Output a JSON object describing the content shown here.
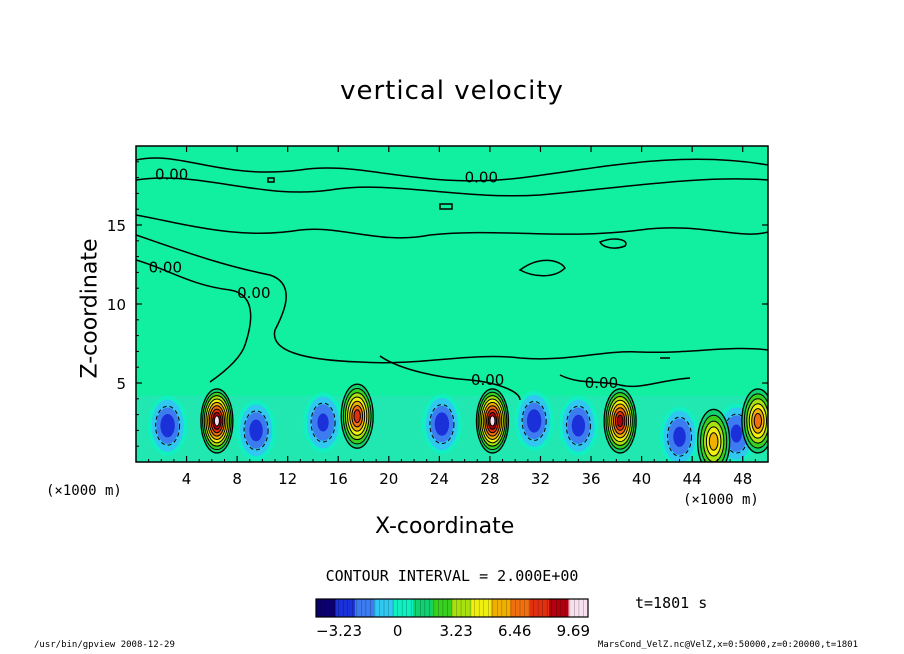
{
  "chart_data": {
    "type": "heatmap",
    "title": "vertical velocity",
    "xlabel": "X-coordinate",
    "ylabel": "Z-coordinate",
    "x_unit": "(×1000 m)",
    "xlim": [
      0,
      50
    ],
    "ylim": [
      0,
      20
    ],
    "x_ticks": [
      "4",
      "8",
      "12",
      "16",
      "20",
      "24",
      "28",
      "32",
      "36",
      "40",
      "44",
      "48"
    ],
    "x_tick_values": [
      4,
      8,
      12,
      16,
      20,
      24,
      28,
      32,
      36,
      40,
      44,
      48
    ],
    "y_ticks": [
      "5",
      "10",
      "15"
    ],
    "y_tick_values": [
      5,
      10,
      15
    ],
    "contour_labels": [
      "0.00",
      "0.00",
      "0.00",
      "0.00",
      "0.00",
      "0.00"
    ],
    "contour_label_positions": [
      [
        1.5,
        18.2
      ],
      [
        26.0,
        18.0
      ],
      [
        1.0,
        12.3
      ],
      [
        8.0,
        10.7
      ],
      [
        26.5,
        5.2
      ],
      [
        35.5,
        5.0
      ]
    ],
    "updrafts": [
      {
        "x": 6.4,
        "z": 2.6,
        "peak": 9.69
      },
      {
        "x": 17.5,
        "z": 2.9,
        "peak": 7.0
      },
      {
        "x": 28.2,
        "z": 2.6,
        "peak": 9.69
      },
      {
        "x": 38.3,
        "z": 2.6,
        "peak": 8.5
      },
      {
        "x": 45.7,
        "z": 1.3,
        "peak": 5.5
      },
      {
        "x": 49.2,
        "z": 2.6,
        "peak": 6.0
      }
    ],
    "downdrafts": [
      {
        "x": 2.5,
        "z": 2.3,
        "min": -3.23
      },
      {
        "x": 9.5,
        "z": 2.0,
        "min": -3.0
      },
      {
        "x": 14.8,
        "z": 2.5,
        "min": -2.5
      },
      {
        "x": 24.2,
        "z": 2.4,
        "min": -3.23
      },
      {
        "x": 31.5,
        "z": 2.6,
        "min": -3.23
      },
      {
        "x": 35.0,
        "z": 2.3,
        "min": -3.0
      },
      {
        "x": 43.0,
        "z": 1.6,
        "min": -2.8
      },
      {
        "x": 47.5,
        "z": 1.8,
        "min": -2.5
      }
    ],
    "contour_interval_text": "CONTOUR INTERVAL = 2.000E+00",
    "time_text": "t=1801 s",
    "colorbar": {
      "min": -4.5,
      "max": 10.5,
      "tick_labels": [
        "−3.23",
        "0",
        "3.23",
        "6.46",
        "9.69"
      ],
      "tick_values": [
        -3.23,
        0,
        3.23,
        6.46,
        9.69
      ],
      "colors": [
        "#0a0070",
        "#1a30d8",
        "#3c7cf0",
        "#30c8f0",
        "#10f0c0",
        "#10d070",
        "#38d020",
        "#a8e010",
        "#f0f010",
        "#f0b000",
        "#f07010",
        "#e03010",
        "#b00010",
        "#f8e0f0"
      ]
    },
    "footer_left": "/usr/bin/gpview   2008-12-29",
    "footer_right": "MarsCond_VelZ.nc@VelZ,x=0:50000,z=0:20000,t=1801"
  }
}
